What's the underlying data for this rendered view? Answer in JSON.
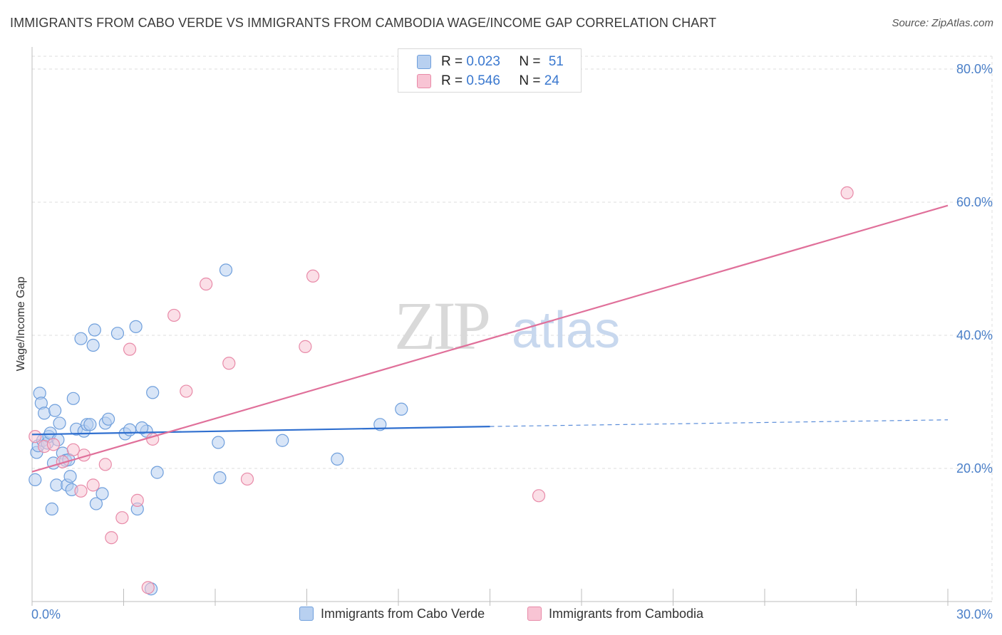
{
  "header": {
    "title": "IMMIGRANTS FROM CABO VERDE VS IMMIGRANTS FROM CAMBODIA WAGE/INCOME GAP CORRELATION CHART",
    "source": "Source: ZipAtlas.com"
  },
  "watermark": {
    "zip": "ZIP",
    "atlas": "atlas"
  },
  "legend_top": [
    {
      "r_label": "R =",
      "r_value": "0.023",
      "n_label": "N =",
      "n_value": "51"
    },
    {
      "r_label": "R =",
      "r_value": "0.546",
      "n_label": "N =",
      "n_value": "24"
    }
  ],
  "legend_bottom": [
    {
      "label": "Immigrants from Cabo Verde"
    },
    {
      "label": "Immigrants from Cambodia"
    }
  ],
  "colors": {
    "blue_fill": "#b8d0f0",
    "blue_stroke": "#6f9fdc",
    "blue_line": "#2f6fcf",
    "pink_fill": "#f8c4d4",
    "pink_stroke": "#e88aa8",
    "pink_line": "#e0709a",
    "grid": "#dcdcdc",
    "axis_text": "#4a7fc8"
  },
  "chart_data": {
    "type": "scatter",
    "title": "IMMIGRANTS FROM CABO VERDE VS IMMIGRANTS FROM CAMBODIA WAGE/INCOME GAP CORRELATION CHART",
    "xlabel": "",
    "ylabel": "Wage/Income Gap",
    "xlim": [
      0,
      30
    ],
    "ylim": [
      0,
      80
    ],
    "x_tick_labels": [
      {
        "value": 0,
        "label": "0.0%"
      },
      {
        "value": 30,
        "label": "30.0%"
      }
    ],
    "y_tick_labels": [
      {
        "value": 20,
        "label": "20.0%"
      },
      {
        "value": 40,
        "label": "40.0%"
      },
      {
        "value": 60,
        "label": "60.0%"
      },
      {
        "value": 80,
        "label": "80.0%"
      }
    ],
    "series": [
      {
        "name": "Immigrants from Cabo Verde",
        "color": "#6f9fdc",
        "R": 0.023,
        "N": 51,
        "trend": {
          "x0": 0,
          "y0": 25.1,
          "x1": 15,
          "y1": 26.3,
          "dashed_to_x": 30,
          "dashed_to_y": 27.3
        },
        "points": [
          [
            0.1,
            18.3
          ],
          [
            0.15,
            22.4
          ],
          [
            0.2,
            23.4
          ],
          [
            0.25,
            31.3
          ],
          [
            0.3,
            29.8
          ],
          [
            0.35,
            24.2
          ],
          [
            0.4,
            28.3
          ],
          [
            0.5,
            23.8
          ],
          [
            0.55,
            24.8
          ],
          [
            0.6,
            25.3
          ],
          [
            0.65,
            13.9
          ],
          [
            0.7,
            20.8
          ],
          [
            0.75,
            28.7
          ],
          [
            0.8,
            17.5
          ],
          [
            0.85,
            24.3
          ],
          [
            0.9,
            26.8
          ],
          [
            1.0,
            22.3
          ],
          [
            1.1,
            21.2
          ],
          [
            1.15,
            17.5
          ],
          [
            1.2,
            21.3
          ],
          [
            1.25,
            18.8
          ],
          [
            1.3,
            16.8
          ],
          [
            1.35,
            30.5
          ],
          [
            1.45,
            25.9
          ],
          [
            1.6,
            39.5
          ],
          [
            1.7,
            25.6
          ],
          [
            1.8,
            26.6
          ],
          [
            1.9,
            26.6
          ],
          [
            2.0,
            38.5
          ],
          [
            2.05,
            40.8
          ],
          [
            2.1,
            14.7
          ],
          [
            2.3,
            16.2
          ],
          [
            2.4,
            26.8
          ],
          [
            2.5,
            27.4
          ],
          [
            2.8,
            40.3
          ],
          [
            3.05,
            25.2
          ],
          [
            3.2,
            25.8
          ],
          [
            3.4,
            41.3
          ],
          [
            3.45,
            13.9
          ],
          [
            3.75,
            25.6
          ],
          [
            3.9,
            1.9
          ],
          [
            3.95,
            31.4
          ],
          [
            4.1,
            19.4
          ],
          [
            6.1,
            23.9
          ],
          [
            6.15,
            18.6
          ],
          [
            6.35,
            49.8
          ],
          [
            8.2,
            24.2
          ],
          [
            10.0,
            21.4
          ],
          [
            11.4,
            26.6
          ],
          [
            12.1,
            28.9
          ],
          [
            3.6,
            26.1
          ]
        ]
      },
      {
        "name": "Immigrants from Cambodia",
        "color": "#e88aa8",
        "R": 0.546,
        "N": 24,
        "trend": {
          "x0": 0,
          "y0": 19.5,
          "x1": 30,
          "y1": 59.5
        },
        "points": [
          [
            0.1,
            24.8
          ],
          [
            0.4,
            23.3
          ],
          [
            0.7,
            23.6
          ],
          [
            1.0,
            21.0
          ],
          [
            1.35,
            22.8
          ],
          [
            1.6,
            16.6
          ],
          [
            1.7,
            22.0
          ],
          [
            2.0,
            17.5
          ],
          [
            2.4,
            20.6
          ],
          [
            2.6,
            9.6
          ],
          [
            2.95,
            12.6
          ],
          [
            3.2,
            37.9
          ],
          [
            3.45,
            15.2
          ],
          [
            3.8,
            2.1
          ],
          [
            3.95,
            24.4
          ],
          [
            4.65,
            43.0
          ],
          [
            5.05,
            31.6
          ],
          [
            5.7,
            47.7
          ],
          [
            6.45,
            35.8
          ],
          [
            7.05,
            18.4
          ],
          [
            8.95,
            38.3
          ],
          [
            9.2,
            48.9
          ],
          [
            16.6,
            15.9
          ],
          [
            26.7,
            61.4
          ]
        ]
      }
    ]
  }
}
